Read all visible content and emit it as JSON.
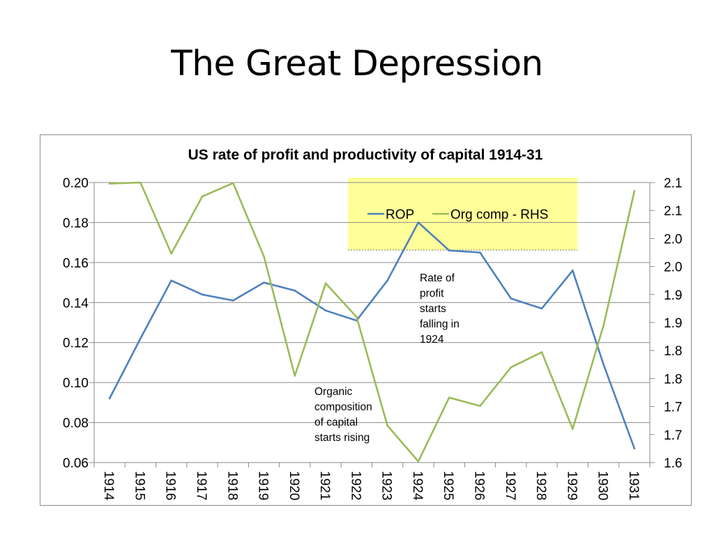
{
  "slide": {
    "title": "The Great Depression"
  },
  "chart_data": {
    "type": "line",
    "title": "US rate of profit and productivity of capital 1914-31",
    "categories": [
      "1914",
      "1915",
      "1916",
      "1917",
      "1918",
      "1919",
      "1920",
      "1921",
      "1922",
      "1923",
      "1924",
      "1925",
      "1926",
      "1927",
      "1928",
      "1929",
      "1930",
      "1931"
    ],
    "series": [
      {
        "name": "ROP",
        "axis": "left",
        "color": "#4f81bd",
        "values": [
          0.092,
          0.122,
          0.151,
          0.144,
          0.141,
          0.15,
          0.146,
          0.136,
          0.131,
          0.151,
          0.18,
          0.166,
          0.165,
          0.142,
          0.137,
          0.156,
          0.109,
          0.067
        ]
      },
      {
        "name": "Org comp - RHS",
        "axis": "right",
        "color": "#9bbb59",
        "values": [
          2.098,
          2.1,
          1.973,
          2.075,
          2.099,
          1.968,
          1.755,
          1.92,
          1.86,
          1.666,
          1.602,
          1.716,
          1.701,
          1.77,
          1.797,
          1.66,
          1.845,
          2.085
        ]
      }
    ],
    "left_axis": {
      "ylim": [
        0.06,
        0.2
      ],
      "ticks": [
        0.2,
        0.18,
        0.16,
        0.14,
        0.12,
        0.1,
        0.08,
        0.06
      ],
      "tick_labels": [
        "0.20",
        "0.18",
        "0.16",
        "0.14",
        "0.12",
        "0.10",
        "0.08",
        "0.06"
      ]
    },
    "right_axis": {
      "ylim": [
        1.6,
        2.1
      ],
      "tick_labels": [
        "2.1",
        "2.1",
        "2.0",
        "2.0",
        "1.9",
        "1.9",
        "1.8",
        "1.8",
        "1.7",
        "1.7",
        "1.6"
      ]
    },
    "grid": true,
    "legend": {
      "position": "top-center",
      "background": "#ffff99",
      "entries": [
        "ROP",
        "Org comp - RHS"
      ]
    },
    "annotations": [
      {
        "lines": [
          "Rate of",
          "profit",
          "starts",
          "falling in",
          "1924"
        ]
      },
      {
        "lines": [
          "Organic",
          "composition",
          "of capital",
          "starts rising"
        ]
      }
    ]
  }
}
